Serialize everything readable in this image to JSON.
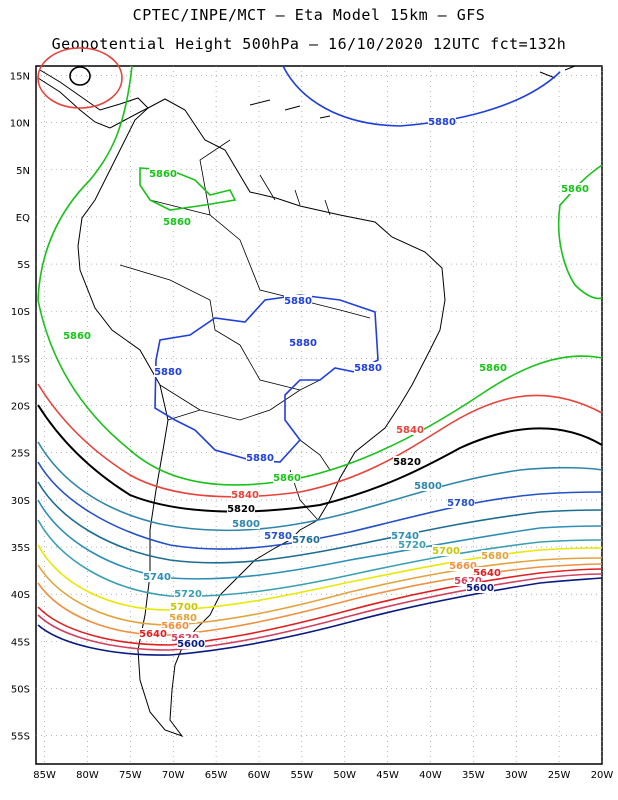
{
  "header": {
    "line1": "CPTEC/INPE/MCT –  Eta Model 15km – GFS",
    "line2": "Geopotential Height 500hPa – 16/10/2020 12UTC fct=132h"
  },
  "axes": {
    "lat_labels": [
      "15N",
      "10N",
      "5N",
      "EQ",
      "5S",
      "10S",
      "15S",
      "20S",
      "25S",
      "30S",
      "35S",
      "40S",
      "45S",
      "50S",
      "55S"
    ],
    "lon_labels": [
      "85W",
      "80W",
      "75W",
      "70W",
      "65W",
      "60W",
      "55W",
      "50W",
      "45W",
      "40W",
      "35W",
      "30W",
      "25W",
      "20W"
    ]
  },
  "chart_data": {
    "type": "contour map",
    "title": "Geopotential Height 500hPa – 16/10/2020 12UTC fct=132h",
    "variable": "Geopotential height at 500 hPa (m)",
    "model": "Eta 15km – GFS",
    "lat_range": [
      -58,
      16
    ],
    "lon_range": [
      -86,
      -20
    ],
    "isolines": [
      {
        "value": 5880,
        "label": "5880",
        "color": "#1f3fdb"
      },
      {
        "value": 5860,
        "label": "5860",
        "color": "#19c219"
      },
      {
        "value": 5840,
        "label": "5840",
        "color": "#e8423a"
      },
      {
        "value": 5820,
        "label": "5820",
        "color": "#000000"
      },
      {
        "value": 5800,
        "label": "5800",
        "color": "#2e86ab"
      },
      {
        "value": 5780,
        "label": "5780",
        "color": "#2450c8"
      },
      {
        "value": 5760,
        "label": "5760",
        "color": "#1c6d91"
      },
      {
        "value": 5740,
        "label": "5740",
        "color": "#2d8fb6"
      },
      {
        "value": 5720,
        "label": "5720",
        "color": "#3aa0b0"
      },
      {
        "value": 5700,
        "label": "5700",
        "color": "#e8e800"
      },
      {
        "value": 5680,
        "label": "5680",
        "color": "#e2a33a"
      },
      {
        "value": 5660,
        "label": "5660",
        "color": "#f09040"
      },
      {
        "value": 5640,
        "label": "5640",
        "color": "#e02020"
      },
      {
        "value": 5620,
        "label": "5620",
        "color": "#d04060"
      },
      {
        "value": 5600,
        "label": "5600",
        "color": "#0a1a80"
      }
    ]
  }
}
